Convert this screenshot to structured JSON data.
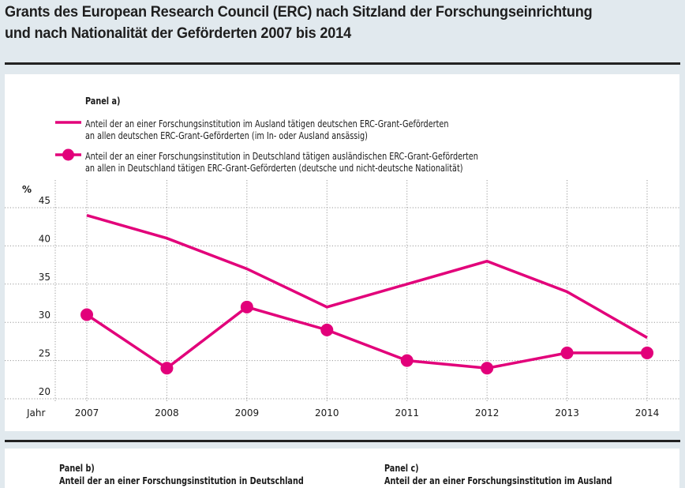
{
  "header": {
    "title_line1": "Grants des European Research Council (ERC) nach Sitzland der Forschungseinrichtung",
    "title_line2": "und nach Nationalität der Geförderten 2007 bis 2014"
  },
  "colors": {
    "accent": "#e2007a",
    "background": "#e1e9ee",
    "panel": "#ffffff",
    "rule": "#222222"
  },
  "chart_data": {
    "type": "line",
    "title": "Panel a)",
    "xlabel": "Jahr",
    "ylabel": "%",
    "x": [
      2007,
      2008,
      2009,
      2010,
      2011,
      2012,
      2013,
      2014
    ],
    "x_tick_labels": [
      "2007",
      "2008",
      "2009",
      "2010",
      "2011",
      "2012",
      "2013",
      "2014"
    ],
    "y_ticks": [
      20,
      25,
      30,
      35,
      40,
      45
    ],
    "y_tick_labels": [
      "20",
      "25",
      "30",
      "35",
      "40",
      "45"
    ],
    "ylim": [
      20,
      45
    ],
    "grid": true,
    "legend_position": "top",
    "series": [
      {
        "name": "Anteil der an einer Forschungsinstitution im Ausland tätigen deutschen ERC-Grant-Geförderten an allen deutschen ERC-Grant-Geförderten (im In- oder Ausland ansässig)",
        "legend_line1": "Anteil der an einer Forschungsinstitution im Ausland tätigen deutschen ERC-Grant-Geförderten",
        "legend_line2": "an allen deutschen ERC-Grant-Geförderten (im In- oder Ausland ansässig)",
        "marker": "none",
        "values": [
          44,
          41,
          37,
          32,
          35,
          38,
          34,
          28
        ]
      },
      {
        "name": "Anteil der an einer Forschungsinstitution in Deutschland tätigen ausländischen ERC-Grant-Geförderten an allen in Deutschland tätigen ERC-Grant-Geförderten (deutsche und nicht-deutsche Nationalität)",
        "legend_line1": "Anteil der an einer Forschungsinstitution in Deutschland tätigen ausländischen ERC-Grant-Geförderten",
        "legend_line2": "an allen in Deutschland tätigen ERC-Grant-Geförderten (deutsche und nicht-deutsche Nationalität)",
        "marker": "circle",
        "values": [
          31,
          24,
          32,
          29,
          25,
          24,
          26,
          26
        ]
      }
    ]
  },
  "panel_b": {
    "label": "Panel b)",
    "text_line1": "Anteil der an einer Forschungsinstitution in Deutschland"
  },
  "panel_c": {
    "label": "Panel c)",
    "text_line1": "Anteil der an einer Forschungsinstitution im Ausland"
  }
}
